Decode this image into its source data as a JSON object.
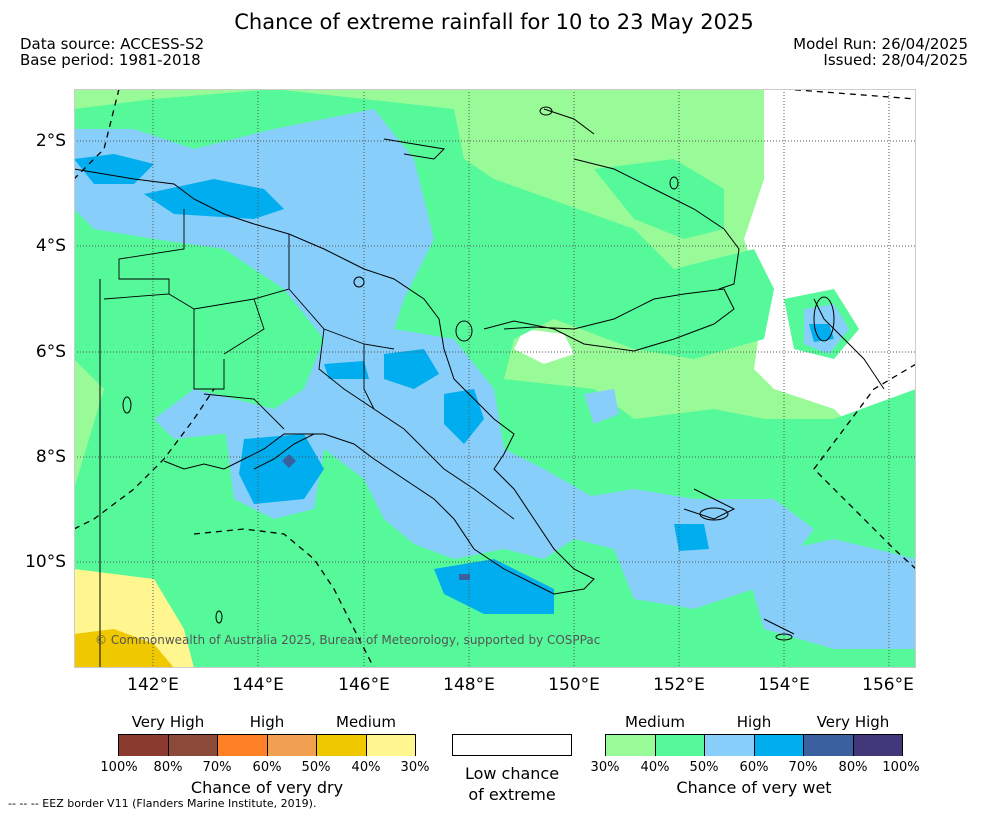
{
  "title": "Chance of extreme rainfall for 10 to 23 May 2025",
  "header": {
    "data_source": "Data source: ACCESS-S2",
    "base_period": "Base period: 1981-2018",
    "model_run": "Model Run: 26/04/2025",
    "issued": "Issued: 28/04/2025"
  },
  "map": {
    "lat_labels": [
      "2°S",
      "4°S",
      "6°S",
      "8°S",
      "10°S"
    ],
    "lon_labels": [
      "142°E",
      "144°E",
      "146°E",
      "148°E",
      "150°E",
      "152°E",
      "154°E",
      "156°E"
    ],
    "copyright": "© Commonwealth of Australia 2025, Bureau of Meteorology, supported by COSPPac"
  },
  "legend": {
    "dry": {
      "heads": [
        "Very High",
        "High",
        "Medium"
      ],
      "colors": [
        "#8b3a30",
        "#8b4a3a",
        "#ff7f27",
        "#f0a050",
        "#f0c800",
        "#fff68f"
      ],
      "pcts": [
        "100%",
        "80%",
        "70%",
        "60%",
        "50%",
        "40%",
        "30%"
      ],
      "caption": "Chance of very dry"
    },
    "neutral": {
      "color": "#ffffff",
      "caption_line1": "Low chance",
      "caption_line2": "of extreme"
    },
    "wet": {
      "heads": [
        "Medium",
        "High",
        "Very High"
      ],
      "colors": [
        "#98fb98",
        "#55f99a",
        "#87cefa",
        "#00aeef",
        "#3a60a0",
        "#403878"
      ],
      "pcts": [
        "30%",
        "40%",
        "50%",
        "60%",
        "70%",
        "80%",
        "100%"
      ],
      "caption": "Chance of very wet"
    }
  },
  "footer": "-- -- -- EEZ border V11 (Flanders Marine Institute, 2019).",
  "colors": {
    "land_outline": "#000000",
    "grid": "#555555",
    "very_light_green": "#98fb98",
    "light_green": "#55f99a",
    "light_blue": "#87cefa",
    "mid_blue": "#00aeef",
    "dark_blue": "#3a60a0",
    "yellow": "#fff68f",
    "gold": "#f0c800"
  }
}
